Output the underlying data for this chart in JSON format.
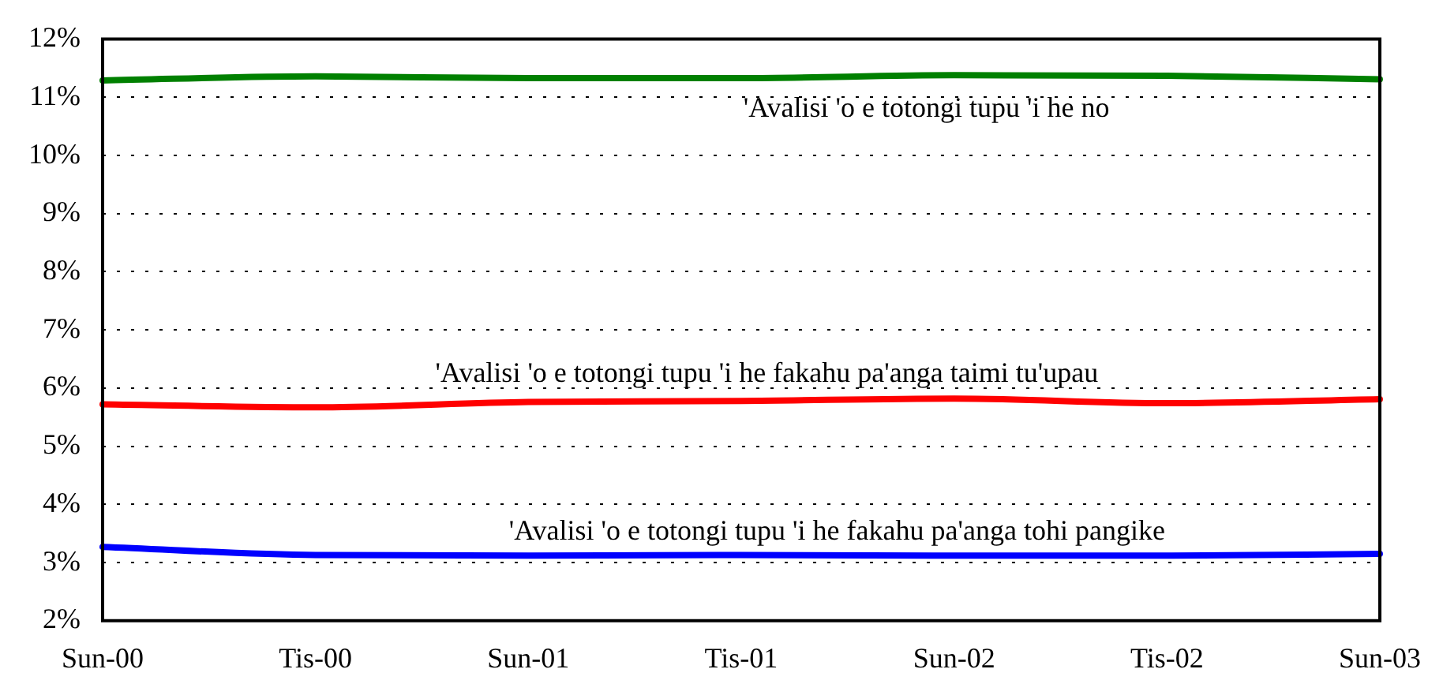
{
  "chart_data": {
    "type": "line",
    "categories": [
      "Sun-00",
      "Tis-00",
      "Sun-01",
      "Tis-01",
      "Sun-02",
      "Tis-02",
      "Sun-03"
    ],
    "series": [
      {
        "name": "'Avalisi 'o e totongi tupu 'i he no",
        "color": "#008000",
        "values": [
          11.29,
          11.36,
          11.33,
          11.33,
          11.38,
          11.37,
          11.31
        ]
      },
      {
        "name": "'Avalisi 'o e totongi tupu 'i he fakahu pa'anga taimi tu'upau",
        "color": "#ff0000",
        "values": [
          5.72,
          5.67,
          5.76,
          5.78,
          5.82,
          5.74,
          5.81
        ]
      },
      {
        "name": "'Avalisi 'o e totongi tupu 'i he fakahu pa'anga tohi pangike",
        "color": "#0000ff",
        "values": [
          3.27,
          3.13,
          3.12,
          3.13,
          3.12,
          3.12,
          3.15
        ]
      }
    ],
    "ylim": [
      2,
      12
    ],
    "yticks": [
      {
        "value": 2,
        "label": "2%"
      },
      {
        "value": 3,
        "label": "3%"
      },
      {
        "value": 4,
        "label": "4%"
      },
      {
        "value": 5,
        "label": "5%"
      },
      {
        "value": 6,
        "label": "6%"
      },
      {
        "value": 7,
        "label": "7%"
      },
      {
        "value": 8,
        "label": "8%"
      },
      {
        "value": 9,
        "label": "9%"
      },
      {
        "value": 10,
        "label": "10%"
      },
      {
        "value": 11,
        "label": "11%"
      },
      {
        "value": 12,
        "label": "12%"
      }
    ],
    "grid": "y",
    "legend": false,
    "marker": "none",
    "line_style": "solid"
  }
}
